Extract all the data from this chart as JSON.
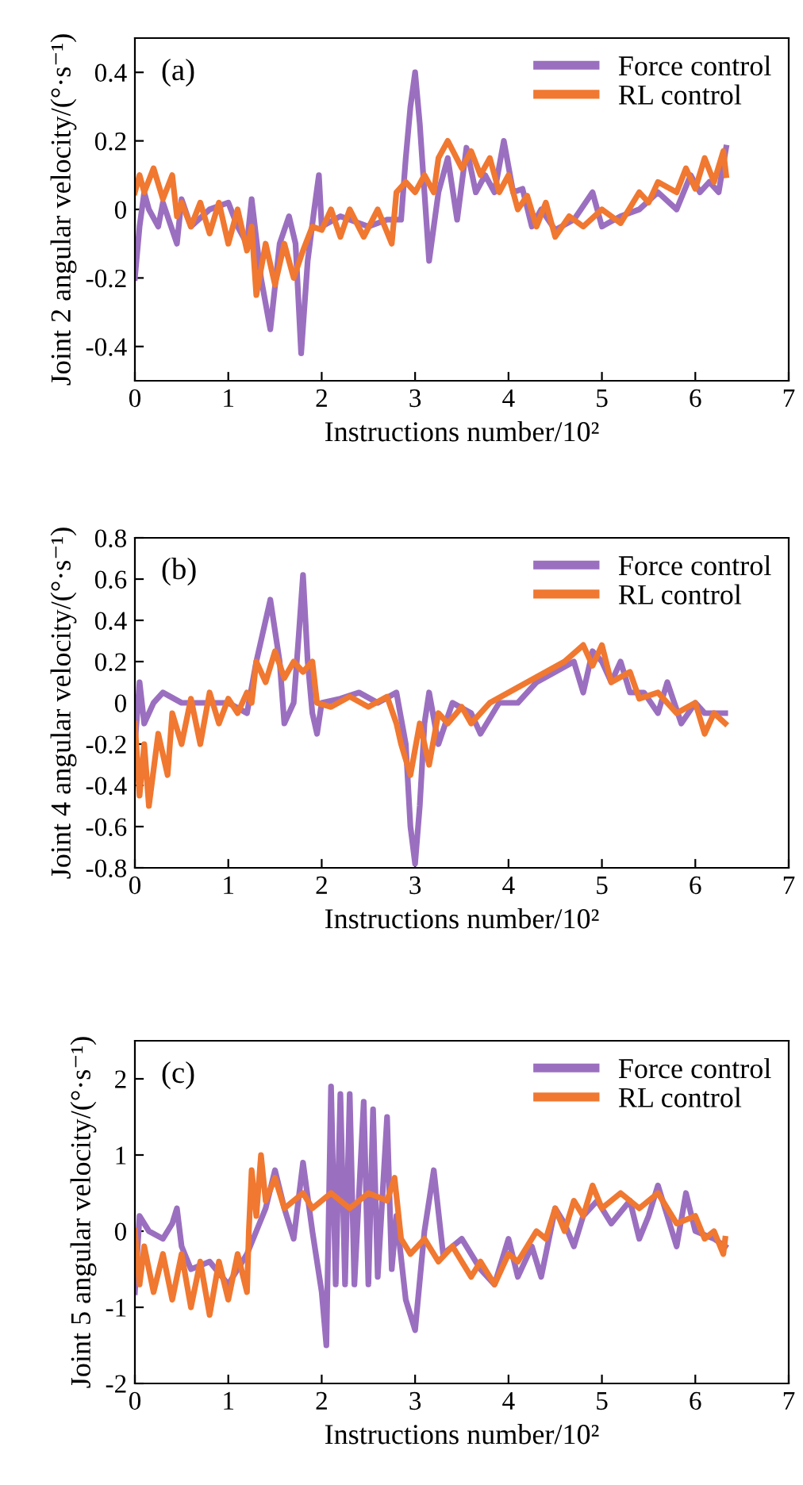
{
  "chart_data": [
    {
      "type": "line",
      "ylabel": "Joint 2 angular velocity/(°·s⁻¹)",
      "xlabel": "Instructions number/10²",
      "annotations": [
        "(a)"
      ],
      "xlim": [
        0,
        7
      ],
      "xticks": [
        0,
        1,
        2,
        3,
        4,
        5,
        6,
        7
      ],
      "ylim": [
        -0.5,
        0.5
      ],
      "yticks": [
        -0.4,
        -0.2,
        0,
        0.2,
        0.4
      ],
      "legend": "top right",
      "grid": false,
      "series": [
        {
          "name": "Force control",
          "color": "#9b6fc0",
          "x": [
            0,
            0.05,
            0.1,
            0.15,
            0.25,
            0.3,
            0.45,
            0.5,
            0.6,
            0.8,
            1.0,
            1.1,
            1.2,
            1.25,
            1.35,
            1.45,
            1.55,
            1.65,
            1.72,
            1.78,
            1.85,
            1.92,
            1.97,
            2.0,
            2.2,
            2.5,
            2.7,
            2.85,
            2.9,
            2.95,
            3.0,
            3.05,
            3.1,
            3.15,
            3.25,
            3.35,
            3.45,
            3.55,
            3.65,
            3.75,
            3.85,
            3.95,
            4.05,
            4.15,
            4.25,
            4.35,
            4.5,
            4.7,
            4.9,
            5.0,
            5.2,
            5.4,
            5.6,
            5.8,
            5.95,
            6.05,
            6.15,
            6.25,
            6.33
          ],
          "values": [
            -0.2,
            -0.05,
            0.05,
            0,
            -0.05,
            0.02,
            -0.1,
            0.03,
            -0.05,
            0,
            0.02,
            -0.05,
            -0.1,
            0.03,
            -0.2,
            -0.35,
            -0.1,
            -0.02,
            -0.1,
            -0.42,
            -0.15,
            0,
            0.1,
            -0.05,
            -0.02,
            -0.05,
            -0.03,
            -0.03,
            0.15,
            0.3,
            0.4,
            0.25,
            0.05,
            -0.15,
            0.05,
            0.15,
            -0.03,
            0.18,
            0.05,
            0.1,
            0.05,
            0.2,
            0.05,
            0.06,
            -0.05,
            0,
            -0.06,
            -0.03,
            0.05,
            -0.05,
            -0.02,
            0,
            0.05,
            0,
            0.1,
            0.05,
            0.08,
            0.05,
            0.18
          ]
        },
        {
          "name": "RL control",
          "color": "#f07830",
          "x": [
            0,
            0.05,
            0.1,
            0.2,
            0.3,
            0.4,
            0.45,
            0.5,
            0.6,
            0.7,
            0.8,
            0.9,
            1.0,
            1.1,
            1.2,
            1.25,
            1.3,
            1.4,
            1.5,
            1.6,
            1.7,
            1.8,
            1.9,
            2.0,
            2.1,
            2.2,
            2.3,
            2.45,
            2.6,
            2.75,
            2.8,
            2.9,
            3.0,
            3.1,
            3.2,
            3.25,
            3.35,
            3.5,
            3.6,
            3.7,
            3.8,
            3.9,
            4.0,
            4.1,
            4.2,
            4.3,
            4.4,
            4.5,
            4.65,
            4.8,
            5.0,
            5.2,
            5.4,
            5.5,
            5.6,
            5.8,
            5.9,
            6.0,
            6.1,
            6.2,
            6.3,
            6.33
          ],
          "values": [
            0.05,
            0.1,
            0.05,
            0.12,
            0.03,
            0.1,
            -0.02,
            0.02,
            -0.05,
            0.02,
            -0.07,
            0.02,
            -0.1,
            0,
            -0.12,
            -0.05,
            -0.25,
            -0.1,
            -0.22,
            -0.1,
            -0.2,
            -0.12,
            -0.05,
            -0.06,
            0,
            -0.08,
            0,
            -0.08,
            0,
            -0.1,
            0.05,
            0.08,
            0.05,
            0.1,
            0.05,
            0.15,
            0.2,
            0.12,
            0.17,
            0.1,
            0.15,
            0.05,
            0.1,
            0,
            0.04,
            -0.05,
            0.02,
            -0.08,
            -0.02,
            -0.05,
            0,
            -0.04,
            0.05,
            0.02,
            0.08,
            0.05,
            0.12,
            0.06,
            0.15,
            0.08,
            0.17,
            0.1
          ]
        }
      ]
    },
    {
      "type": "line",
      "ylabel": "Joint 4 angular velocity/(°·s⁻¹)",
      "xlabel": "Instructions number/10²",
      "annotations": [
        "(b)"
      ],
      "xlim": [
        0,
        7
      ],
      "xticks": [
        0,
        1,
        2,
        3,
        4,
        5,
        6,
        7
      ],
      "ylim": [
        -0.8,
        0.8
      ],
      "yticks": [
        -0.8,
        -0.6,
        -0.4,
        -0.2,
        0,
        0.2,
        0.4,
        0.6,
        0.8
      ],
      "legend": "top right",
      "grid": false,
      "series": [
        {
          "name": "Force control",
          "color": "#9b6fc0",
          "x": [
            0,
            0.05,
            0.1,
            0.2,
            0.3,
            0.5,
            0.8,
            1.0,
            1.2,
            1.3,
            1.45,
            1.55,
            1.6,
            1.7,
            1.75,
            1.8,
            1.85,
            1.9,
            1.95,
            2.0,
            2.2,
            2.4,
            2.6,
            2.8,
            2.9,
            2.95,
            3.0,
            3.05,
            3.1,
            3.15,
            3.25,
            3.4,
            3.6,
            3.7,
            3.9,
            4.1,
            4.3,
            4.5,
            4.7,
            4.8,
            4.9,
            5.0,
            5.1,
            5.2,
            5.3,
            5.45,
            5.6,
            5.7,
            5.85,
            6.0,
            6.1,
            6.2,
            6.32
          ],
          "values": [
            -0.2,
            0.1,
            -0.1,
            0,
            0.05,
            0,
            0,
            0,
            -0.05,
            0.2,
            0.5,
            0.2,
            -0.1,
            0,
            0.3,
            0.62,
            0.2,
            -0.05,
            -0.15,
            0,
            0.02,
            0.05,
            0,
            0.05,
            -0.2,
            -0.6,
            -0.78,
            -0.5,
            -0.1,
            0.05,
            -0.2,
            0,
            -0.05,
            -0.15,
            0,
            0,
            0.1,
            0.15,
            0.2,
            0.05,
            0.25,
            0.2,
            0.1,
            0.2,
            0.05,
            0.05,
            -0.05,
            0.1,
            -0.1,
            0,
            -0.05,
            -0.05,
            -0.05
          ]
        },
        {
          "name": "RL control",
          "color": "#f07830",
          "x": [
            0,
            0.05,
            0.1,
            0.15,
            0.25,
            0.35,
            0.4,
            0.5,
            0.6,
            0.7,
            0.8,
            0.9,
            1.0,
            1.1,
            1.2,
            1.25,
            1.3,
            1.4,
            1.5,
            1.6,
            1.7,
            1.8,
            1.9,
            1.95,
            2.1,
            2.3,
            2.5,
            2.7,
            2.8,
            2.85,
            2.95,
            3.05,
            3.15,
            3.25,
            3.35,
            3.5,
            3.6,
            3.8,
            4.0,
            4.2,
            4.4,
            4.6,
            4.8,
            4.9,
            5.0,
            5.1,
            5.3,
            5.4,
            5.6,
            5.8,
            6.0,
            6.1,
            6.2,
            6.32
          ],
          "values": [
            -0.1,
            -0.45,
            -0.2,
            -0.5,
            -0.15,
            -0.35,
            -0.05,
            -0.2,
            0.02,
            -0.2,
            0.05,
            -0.1,
            0.02,
            -0.05,
            0.05,
            0,
            0.2,
            0.1,
            0.25,
            0.12,
            0.2,
            0.15,
            0.2,
            0,
            -0.02,
            0.03,
            -0.02,
            0.03,
            -0.1,
            -0.2,
            -0.35,
            -0.1,
            -0.3,
            -0.05,
            -0.1,
            -0.02,
            -0.1,
            0,
            0.05,
            0.1,
            0.15,
            0.2,
            0.28,
            0.18,
            0.28,
            0.1,
            0.15,
            0.02,
            0.05,
            -0.05,
            0,
            -0.15,
            -0.05,
            -0.1
          ]
        }
      ]
    },
    {
      "type": "line",
      "ylabel": "Joint 5 angular velocity/(°·s⁻¹)",
      "xlabel": "Instructions number/10²",
      "annotations": [
        "(c)"
      ],
      "xlim": [
        0,
        7
      ],
      "xticks": [
        0,
        1,
        2,
        3,
        4,
        5,
        6,
        7
      ],
      "ylim": [
        -2,
        2.5
      ],
      "yticks": [
        -2,
        -1,
        0,
        1,
        2
      ],
      "legend": "top right",
      "grid": false,
      "series": [
        {
          "name": "Force control",
          "color": "#9b6fc0",
          "x": [
            0,
            0.05,
            0.15,
            0.3,
            0.4,
            0.45,
            0.5,
            0.6,
            0.8,
            1.0,
            1.2,
            1.3,
            1.4,
            1.5,
            1.6,
            1.7,
            1.8,
            1.9,
            2.0,
            2.05,
            2.1,
            2.15,
            2.2,
            2.25,
            2.3,
            2.35,
            2.45,
            2.5,
            2.55,
            2.6,
            2.7,
            2.75,
            2.8,
            2.9,
            3.0,
            3.1,
            3.2,
            3.3,
            3.4,
            3.5,
            3.7,
            3.85,
            4.0,
            4.1,
            4.25,
            4.35,
            4.5,
            4.6,
            4.7,
            4.8,
            4.95,
            5.1,
            5.3,
            5.4,
            5.5,
            5.6,
            5.7,
            5.8,
            5.9,
            6.0,
            6.2,
            6.32
          ],
          "values": [
            -0.8,
            0.2,
            0,
            -0.1,
            0.1,
            0.3,
            -0.2,
            -0.5,
            -0.4,
            -0.7,
            -0.3,
            0,
            0.3,
            0.8,
            0.3,
            -0.1,
            0.9,
            0,
            -0.8,
            -1.5,
            1.9,
            -0.7,
            1.8,
            -0.7,
            1.8,
            -0.7,
            1.7,
            -0.7,
            1.6,
            -0.6,
            1.5,
            -0.5,
            0.2,
            -0.9,
            -1.3,
            0,
            0.8,
            -0.3,
            -0.2,
            -0.1,
            -0.5,
            -0.7,
            -0.1,
            -0.6,
            -0.2,
            -0.6,
            0.3,
            0.1,
            -0.2,
            0.2,
            0.4,
            0.1,
            0.4,
            -0.1,
            0.2,
            0.6,
            0.2,
            -0.2,
            0.5,
            0,
            -0.1,
            -0.2
          ]
        },
        {
          "name": "RL control",
          "color": "#f07830",
          "x": [
            0,
            0.05,
            0.1,
            0.2,
            0.3,
            0.4,
            0.5,
            0.6,
            0.7,
            0.8,
            0.9,
            1.0,
            1.1,
            1.2,
            1.22,
            1.25,
            1.3,
            1.35,
            1.4,
            1.5,
            1.6,
            1.8,
            1.9,
            2.1,
            2.3,
            2.5,
            2.7,
            2.78,
            2.85,
            2.95,
            3.1,
            3.25,
            3.4,
            3.6,
            3.7,
            3.85,
            4.0,
            4.1,
            4.3,
            4.4,
            4.5,
            4.6,
            4.7,
            4.8,
            4.9,
            5.0,
            5.2,
            5.4,
            5.6,
            5.8,
            6.0,
            6.1,
            6.2,
            6.3,
            6.32
          ],
          "values": [
            0,
            -0.7,
            -0.2,
            -0.8,
            -0.3,
            -0.9,
            -0.3,
            -1,
            -0.4,
            -1.1,
            -0.4,
            -0.9,
            -0.3,
            -0.8,
            0,
            0.8,
            0.2,
            1,
            0.4,
            0.7,
            0.3,
            0.5,
            0.3,
            0.5,
            0.3,
            0.5,
            0.4,
            0.7,
            -0.1,
            -0.3,
            -0.1,
            -0.4,
            -0.2,
            -0.6,
            -0.4,
            -0.7,
            -0.3,
            -0.4,
            0,
            -0.1,
            0.3,
            0,
            0.4,
            0.2,
            0.6,
            0.3,
            0.5,
            0.3,
            0.5,
            0.1,
            0.2,
            -0.1,
            0,
            -0.3,
            -0.1
          ]
        }
      ]
    }
  ]
}
